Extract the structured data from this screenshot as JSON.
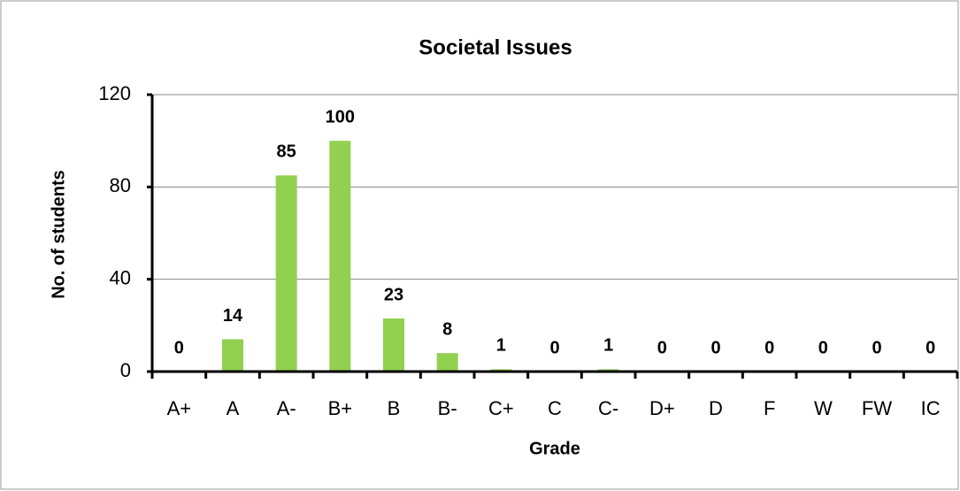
{
  "chart_data": {
    "type": "bar",
    "title": "Societal Issues",
    "x_label": "Grade",
    "y_label": "No. of students",
    "categories": [
      "A+",
      "A",
      "A-",
      "B+",
      "B",
      "B-",
      "C+",
      "C",
      "C-",
      "D+",
      "D",
      "F",
      "W",
      "FW",
      "IC"
    ],
    "values": [
      0,
      14,
      85,
      100,
      23,
      8,
      1,
      0,
      1,
      0,
      0,
      0,
      0,
      0,
      0
    ],
    "color": "#92d050",
    "ylim": [
      0,
      120
    ],
    "yticks": [
      0,
      40,
      80,
      120
    ],
    "grid": true
  }
}
